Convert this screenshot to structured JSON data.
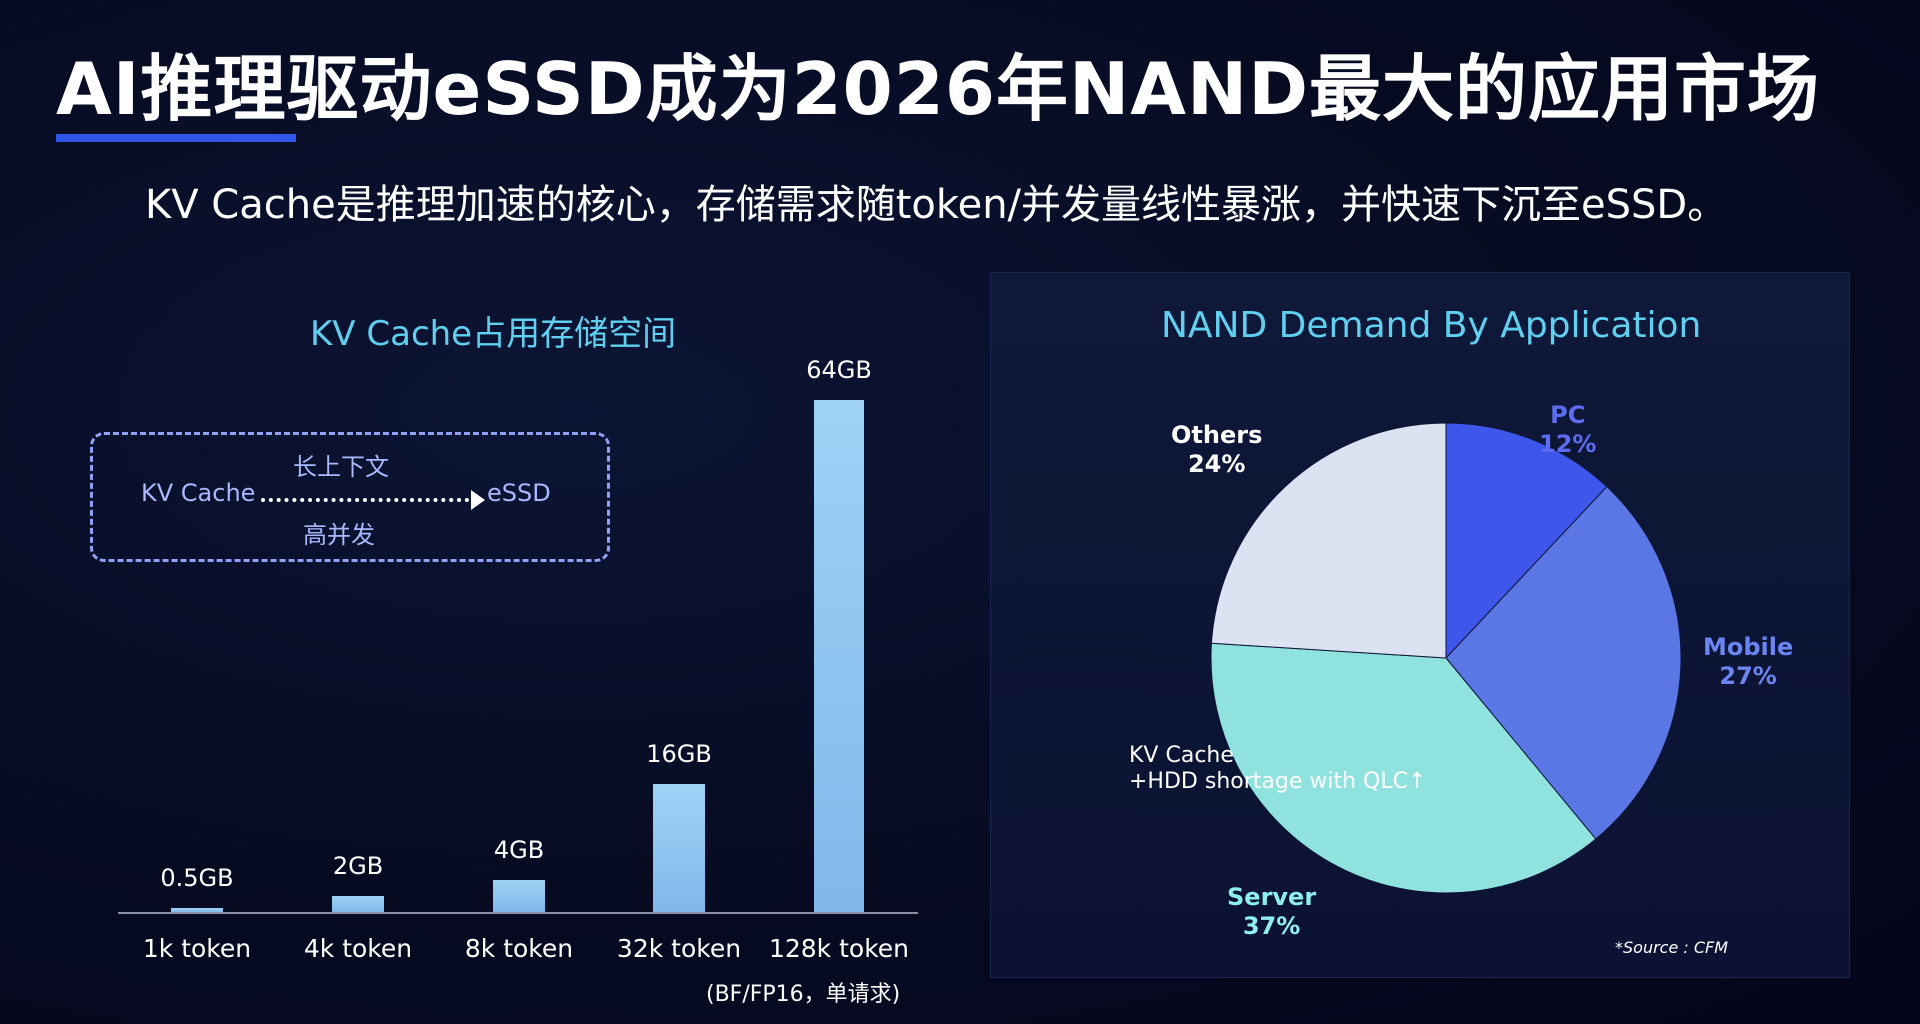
{
  "slide": {
    "title": "AI推理驱动eSSD成为2026年NAND最大的应用市场",
    "subtitle": "KV Cache是推理加速的核心，存储需求随token/并发量线性暴涨，并快速下沉至eSSD。"
  },
  "flow": {
    "source": "KV Cache",
    "target": "eSSD",
    "top_label": "长上下文",
    "bottom_label": "高并发"
  },
  "colors": {
    "bar": "#8fc6f1",
    "pc": "#3f56ea",
    "mobile": "#5b77e6",
    "server": "#8fe2de",
    "others": "#dbe2f1"
  },
  "chart_data": [
    {
      "type": "bar",
      "title": "KV Cache占用存储空间",
      "categories": [
        "1k token",
        "4k token",
        "8k token",
        "32k token",
        "128k token"
      ],
      "values": [
        0.5,
        2,
        4,
        16,
        64
      ],
      "value_labels": [
        "0.5GB",
        "2GB",
        "4GB",
        "16GB",
        "64GB"
      ],
      "xlabel": "",
      "ylabel": "",
      "ylim": [
        0,
        64
      ],
      "note": "(BF/FP16，单请求)",
      "grid": false,
      "legend": "none"
    },
    {
      "type": "pie",
      "title": "NAND Demand By Application",
      "slices": [
        {
          "name": "PC",
          "percent_label": "12%",
          "value": 12
        },
        {
          "name": "Mobile",
          "percent_label": "27%",
          "value": 27
        },
        {
          "name": "Server",
          "percent_label": "37%",
          "value": 37
        },
        {
          "name": "Others",
          "percent_label": "24%",
          "value": 24
        }
      ],
      "annotation_lines": [
        "KV Cache",
        "+HDD shortage with QLC↑"
      ],
      "source": "*Source : CFM",
      "legend": "none"
    }
  ]
}
